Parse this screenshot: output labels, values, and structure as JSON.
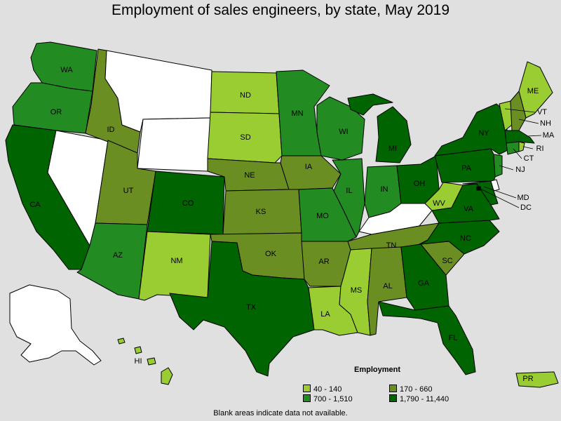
{
  "title": "Employment of sales engineers, by state, May 2019",
  "legend": {
    "title": "Employment",
    "bins": [
      {
        "label": "40 - 140",
        "color": "#9acd32"
      },
      {
        "label": "170 - 660",
        "color": "#6b8e23"
      },
      {
        "label": "700 - 1,510",
        "color": "#228b22"
      },
      {
        "label": "1,790 - 11,440",
        "color": "#006400"
      }
    ]
  },
  "no_data_color": "#ffffff",
  "footnote": "Blank areas indicate data not available.",
  "states": {
    "WA": 2,
    "OR": 2,
    "CA": 3,
    "NV": -1,
    "ID": 1,
    "MT": -1,
    "WY": -1,
    "UT": 1,
    "AZ": 2,
    "CO": 3,
    "NM": 0,
    "ND": 0,
    "SD": 0,
    "NE": 1,
    "KS": 1,
    "OK": 1,
    "TX": 3,
    "MN": 2,
    "IA": 1,
    "MO": 2,
    "AR": 1,
    "LA": 0,
    "WI": 2,
    "IL": 2,
    "MI": 3,
    "IN": 2,
    "OH": 3,
    "KY": -1,
    "TN": 1,
    "MS": 0,
    "AL": 1,
    "GA": 3,
    "FL": 3,
    "SC": 1,
    "NC": 3,
    "VA": 3,
    "WV": 0,
    "PA": 3,
    "NY": 3,
    "ME": 0,
    "VT": 0,
    "NH": 1,
    "MA": 3,
    "CT": 2,
    "RI": 0,
    "NJ": 2,
    "DE": -1,
    "MD": 3,
    "DC": 3,
    "AK": -1,
    "HI": 0,
    "PR": 0
  }
}
